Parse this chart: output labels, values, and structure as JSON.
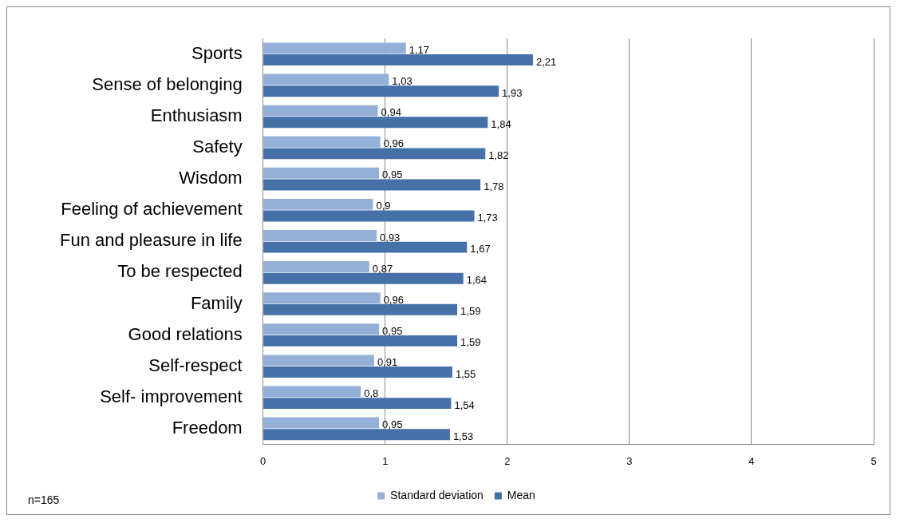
{
  "chart_data": {
    "type": "bar",
    "orientation": "horizontal",
    "categories": [
      "Sports",
      "Sense of belonging",
      "Enthusiasm",
      "Safety",
      "Wisdom",
      "Feeling of achievement",
      "Fun and pleasure in life",
      "To be respected",
      "Family",
      "Good relations",
      "Self-respect",
      "Self- improvement",
      "Freedom"
    ],
    "series": [
      {
        "name": "Standard deviation",
        "color": "#95b0d8",
        "values": [
          1.17,
          1.03,
          0.94,
          0.96,
          0.95,
          0.9,
          0.93,
          0.87,
          0.96,
          0.95,
          0.91,
          0.8,
          0.95
        ],
        "value_labels": [
          "1,17",
          "1,03",
          "0,94",
          "0,96",
          "0,95",
          "0,9",
          "0,93",
          "0,87",
          "0,96",
          "0,95",
          "0,91",
          "0,8",
          "0,95"
        ]
      },
      {
        "name": "Mean",
        "color": "#4570a8",
        "values": [
          2.21,
          1.93,
          1.84,
          1.82,
          1.78,
          1.73,
          1.67,
          1.64,
          1.59,
          1.59,
          1.55,
          1.54,
          1.53
        ],
        "value_labels": [
          "2,21",
          "1,93",
          "1,84",
          "1,82",
          "1,78",
          "1,73",
          "1,67",
          "1,64",
          "1,59",
          "1,59",
          "1,55",
          "1,54",
          "1,53"
        ]
      }
    ],
    "xlim": [
      0,
      5
    ],
    "xticks": [
      0,
      1,
      2,
      3,
      4,
      5
    ],
    "grid": "x",
    "legend": "bottom",
    "annotations": [
      "n=165"
    ]
  }
}
